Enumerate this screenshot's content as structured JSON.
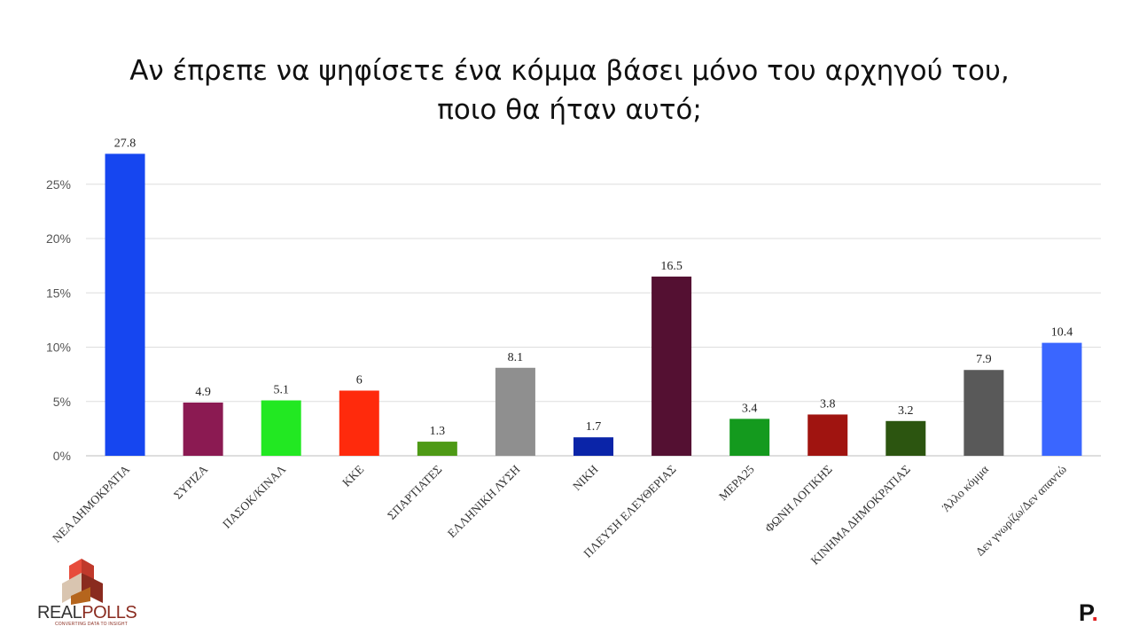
{
  "title_line1": "Αν έπρεπε να ψηφίσετε ένα κόμμα βάσει μόνο του αρχηγού του,",
  "title_line2": "ποιο θα ήταν αυτό;",
  "chart_data": {
    "type": "bar",
    "title": "Αν έπρεπε να ψηφίσετε ένα κόμμα βάσει μόνο του αρχηγού του, ποιο θα ήταν αυτό;",
    "xlabel": "",
    "ylabel": "",
    "categories": [
      "ΝΕΑ ΔΗΜΟΚΡΑΤΙΑ",
      "ΣΥΡΙΖΑ",
      "ΠΑΣΟΚ/ΚΙΝΑΛ",
      "ΚΚΕ",
      "ΣΠΑΡΤΙΑΤΕΣ",
      "ΕΛΛΗΝΙΚΗ ΛΥΣΗ",
      "ΝΙΚΗ",
      "ΠΛΕΥΣΗ ΕΛΕΥΘΕΡΙΑΣ",
      "ΜΕΡΑ25",
      "ΦΩΝΗ ΛΟΓΙΚΗΣ",
      "ΚΙΝΗΜΑ ΔΗΜΟΚΡΑΤΙΑΣ",
      "Άλλο κόμμα",
      "Δεν γνωρίζω/Δεν απαντώ"
    ],
    "values": [
      27.8,
      4.9,
      5.1,
      6,
      1.3,
      8.1,
      1.7,
      16.5,
      3.4,
      3.8,
      3.2,
      7.9,
      10.4
    ],
    "value_labels": [
      "27.8",
      "4.9",
      "5.1",
      "6",
      "1.3",
      "8.1",
      "1.7",
      "16.5",
      "3.4",
      "3.8",
      "3.2",
      "7.9",
      "10.4"
    ],
    "colors": [
      "#1646f0",
      "#8b1a52",
      "#22e822",
      "#ff2a0c",
      "#4e9a16",
      "#8f8f8f",
      "#0a24a8",
      "#541032",
      "#149a1e",
      "#a01410",
      "#2c5510",
      "#595959",
      "#3a66ff"
    ],
    "ylim": [
      0,
      28
    ],
    "yticks": [
      0,
      5,
      10,
      15,
      20,
      25
    ],
    "ytick_labels": [
      "0%",
      "5%",
      "10%",
      "15%",
      "20%",
      "25%"
    ],
    "grid": true,
    "legend": "none"
  },
  "logos": {
    "left_text_part1": "REAL",
    "left_text_part2": "POLLS",
    "left_tagline": "CONVERTING DATA TO INSIGHT",
    "right_letter": "P",
    "right_dot": "."
  }
}
